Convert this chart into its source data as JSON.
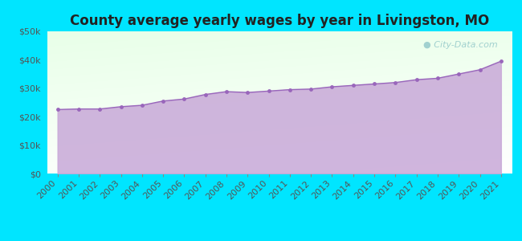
{
  "title": "County average yearly wages by year in Livingston, MO",
  "years": [
    2000,
    2001,
    2002,
    2003,
    2004,
    2005,
    2006,
    2007,
    2008,
    2009,
    2010,
    2011,
    2012,
    2013,
    2014,
    2015,
    2016,
    2017,
    2018,
    2019,
    2020,
    2021
  ],
  "wages": [
    22500,
    22700,
    22700,
    23500,
    24000,
    25500,
    26200,
    27800,
    28800,
    28500,
    29000,
    29500,
    29700,
    30500,
    31000,
    31500,
    32000,
    33000,
    33500,
    35000,
    36500,
    39500
  ],
  "ylim": [
    0,
    50000
  ],
  "yticks": [
    0,
    10000,
    20000,
    30000,
    40000,
    50000
  ],
  "ytick_labels": [
    "$0",
    "$10k",
    "$20k",
    "$30k",
    "$40k",
    "$50k"
  ],
  "bg_outer": "#00e5ff",
  "fill_color": "#c8a8d8",
  "fill_alpha": 0.85,
  "line_color": "#9966bb",
  "marker_color": "#9966bb",
  "title_color": "#222222",
  "tick_color": "#555555",
  "watermark_text": "City-Data.com",
  "watermark_color": "#99cccc",
  "title_fontsize": 12,
  "tick_fontsize": 8
}
